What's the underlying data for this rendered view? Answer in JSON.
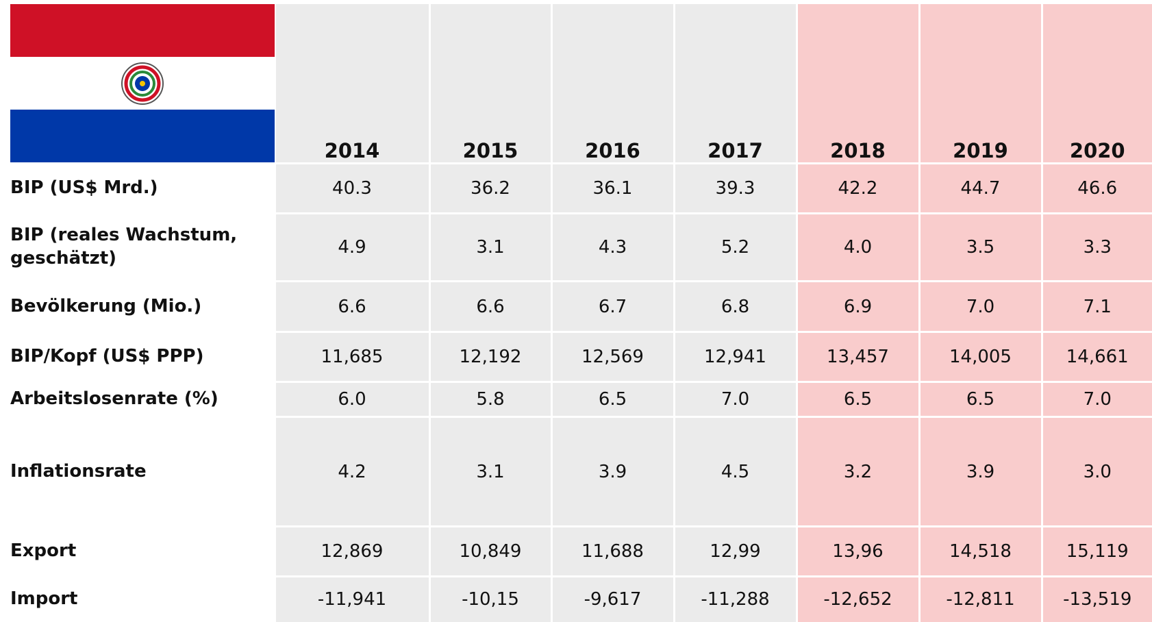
{
  "header": {
    "years": [
      "2014",
      "2015",
      "2016",
      "2017",
      "2018",
      "2019",
      "2020"
    ]
  },
  "table": {
    "rows": [
      {
        "label": "BIP (US$ Mrd.)",
        "values": [
          "40.3",
          "36.2",
          "36.1",
          "39.3",
          "42.2",
          "44.7",
          "46.6"
        ]
      },
      {
        "label": "BIP (reales Wachstum, geschätzt)",
        "values": [
          "4.9",
          "3.1",
          "4.3",
          "5.2",
          "4.0",
          "3.5",
          "3.3"
        ]
      },
      {
        "label": "Bevölkerung (Mio.)",
        "values": [
          "6.6",
          "6.6",
          "6.7",
          "6.8",
          "6.9",
          "7.0",
          "7.1"
        ]
      },
      {
        "label": "BIP/Kopf (US$ PPP)",
        "values": [
          "11,685",
          "12,192",
          "12,569",
          "12,941",
          "13,457",
          "14,005",
          "14,661"
        ]
      },
      {
        "label": "Arbeitslosenrate (%)",
        "values": [
          "6.0",
          "5.8",
          "6.5",
          "7.0",
          "6.5",
          "6.5",
          "7.0"
        ]
      },
      {
        "label": "Inflationsrate",
        "values": [
          "4.2",
          "3.1",
          "3.9",
          "4.5",
          "3.2",
          "3.9",
          "3.0"
        ]
      },
      {
        "label": "Export",
        "values": [
          "12,869",
          "10,849",
          "11,688",
          "12,99",
          "13,96",
          "14,518",
          "15,119"
        ]
      },
      {
        "label": "Import",
        "values": [
          "-11,941",
          "-10,15",
          "-9,617",
          "-11,288",
          "-12,652",
          "-12,811",
          "-13,519"
        ]
      }
    ]
  }
}
